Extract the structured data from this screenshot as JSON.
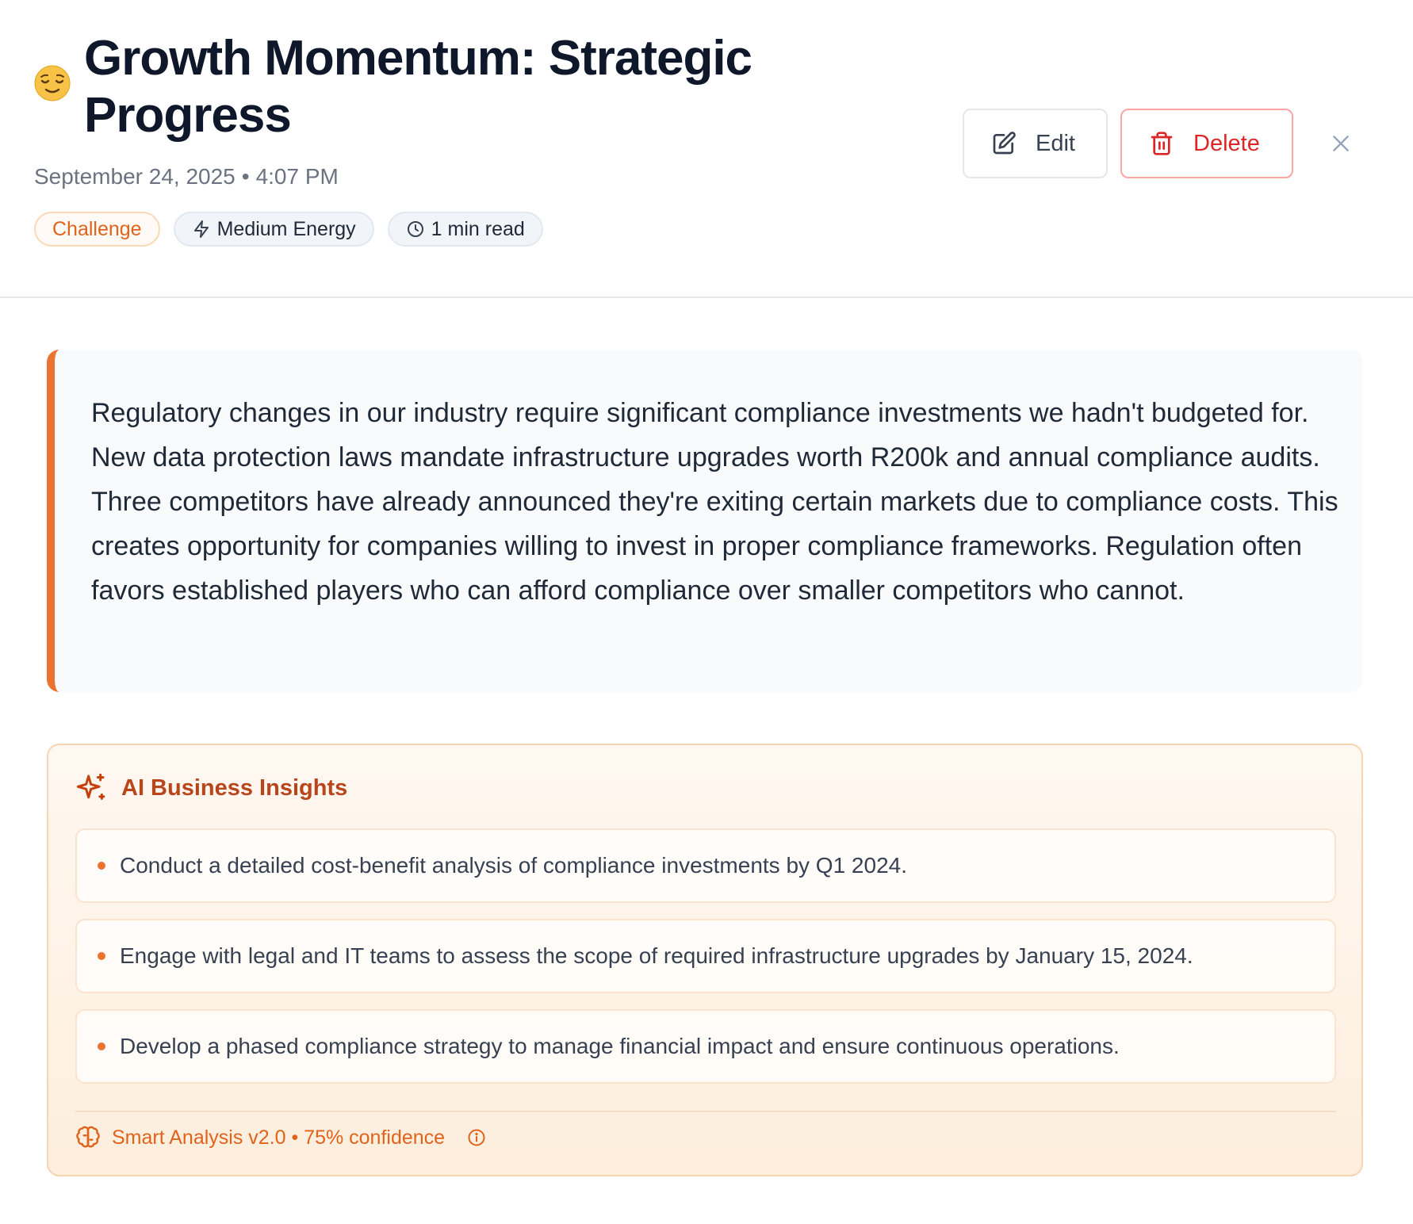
{
  "entry": {
    "mood_icon": "relieved-face-icon",
    "title": "Growth Momentum: Strategic Progress",
    "date": "September 24, 2025",
    "time": "4:07 PM",
    "tags": {
      "category": "Challenge",
      "energy": "Medium Energy",
      "read_time": "1 min read"
    },
    "content": "Regulatory changes in our industry require significant compliance investments we hadn't budgeted for. New data protection laws mandate infrastructure upgrades worth R200k and annual compliance audits. Three competitors have already announced they're exiting certain markets due to compliance costs. This creates opportunity for companies willing to invest in proper compliance frameworks. Regulation often favors established players who can afford compliance over smaller competitors who cannot."
  },
  "actions": {
    "edit_label": "Edit",
    "delete_label": "Delete"
  },
  "insights": {
    "title": "AI Business Insights",
    "items": [
      "Conduct a detailed cost-benefit analysis of compliance investments by Q1 2024.",
      "Engage with legal and IT teams to assess the scope of required infrastructure upgrades by January 15, 2024.",
      "Develop a phased compliance strategy to manage financial impact and ensure continuous operations."
    ],
    "footer": "Smart Analysis v2.0 • 75% confidence"
  },
  "colors": {
    "accent": "#ea7331",
    "danger": "#dc2626",
    "insight_title": "#b8461a"
  }
}
